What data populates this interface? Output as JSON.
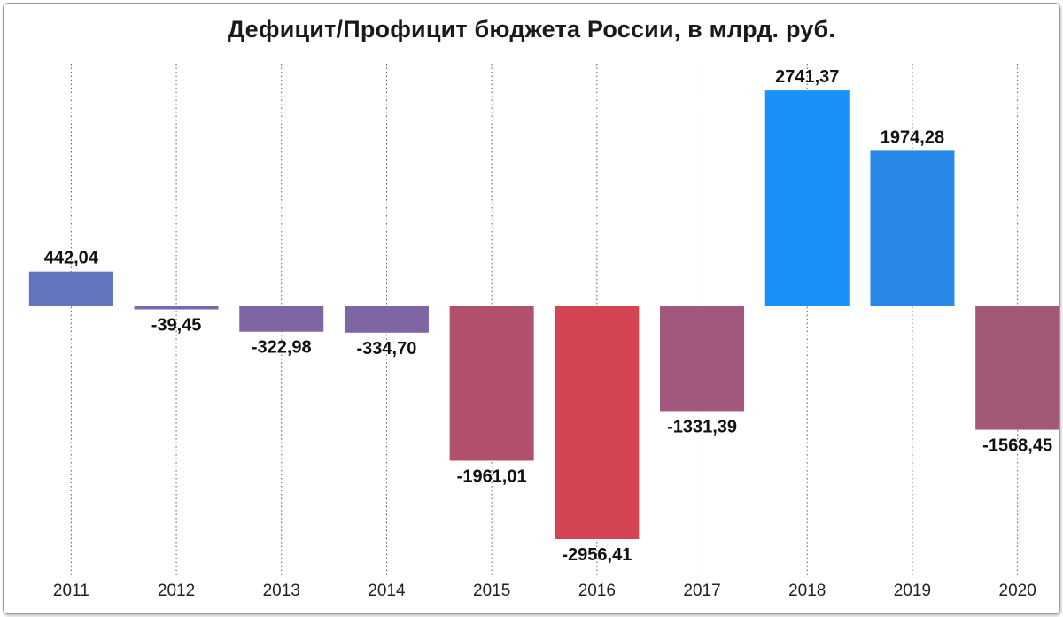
{
  "chart_data": {
    "type": "bar",
    "title": "Дефицит/Профицит бюджета России, в млрд. руб.",
    "xlabel": "",
    "ylabel": "",
    "categories": [
      "2011",
      "2012",
      "2013",
      "2014",
      "2015",
      "2016",
      "2017",
      "2018",
      "2019",
      "2020"
    ],
    "values": [
      442.04,
      -39.45,
      -322.98,
      -334.7,
      -1961.01,
      -2956.41,
      -1331.39,
      2741.37,
      1974.28,
      -1568.45
    ],
    "value_labels": [
      "442,04",
      "-39,45",
      "-322,98",
      "-334,70",
      "-1961,01",
      "-2956,41",
      "-1331,39",
      "2741,37",
      "1974,28",
      "-1568,45"
    ],
    "ylim": [
      -3100,
      3100
    ],
    "grid": "vertical-dotted",
    "legend": "none",
    "colors": [
      "#6474be",
      "#6e6cb2",
      "#7f65a4",
      "#7f65a4",
      "#b0506c",
      "#d44452",
      "#a2577e",
      "#1991f8",
      "#2a88e6",
      "#a45878"
    ]
  }
}
